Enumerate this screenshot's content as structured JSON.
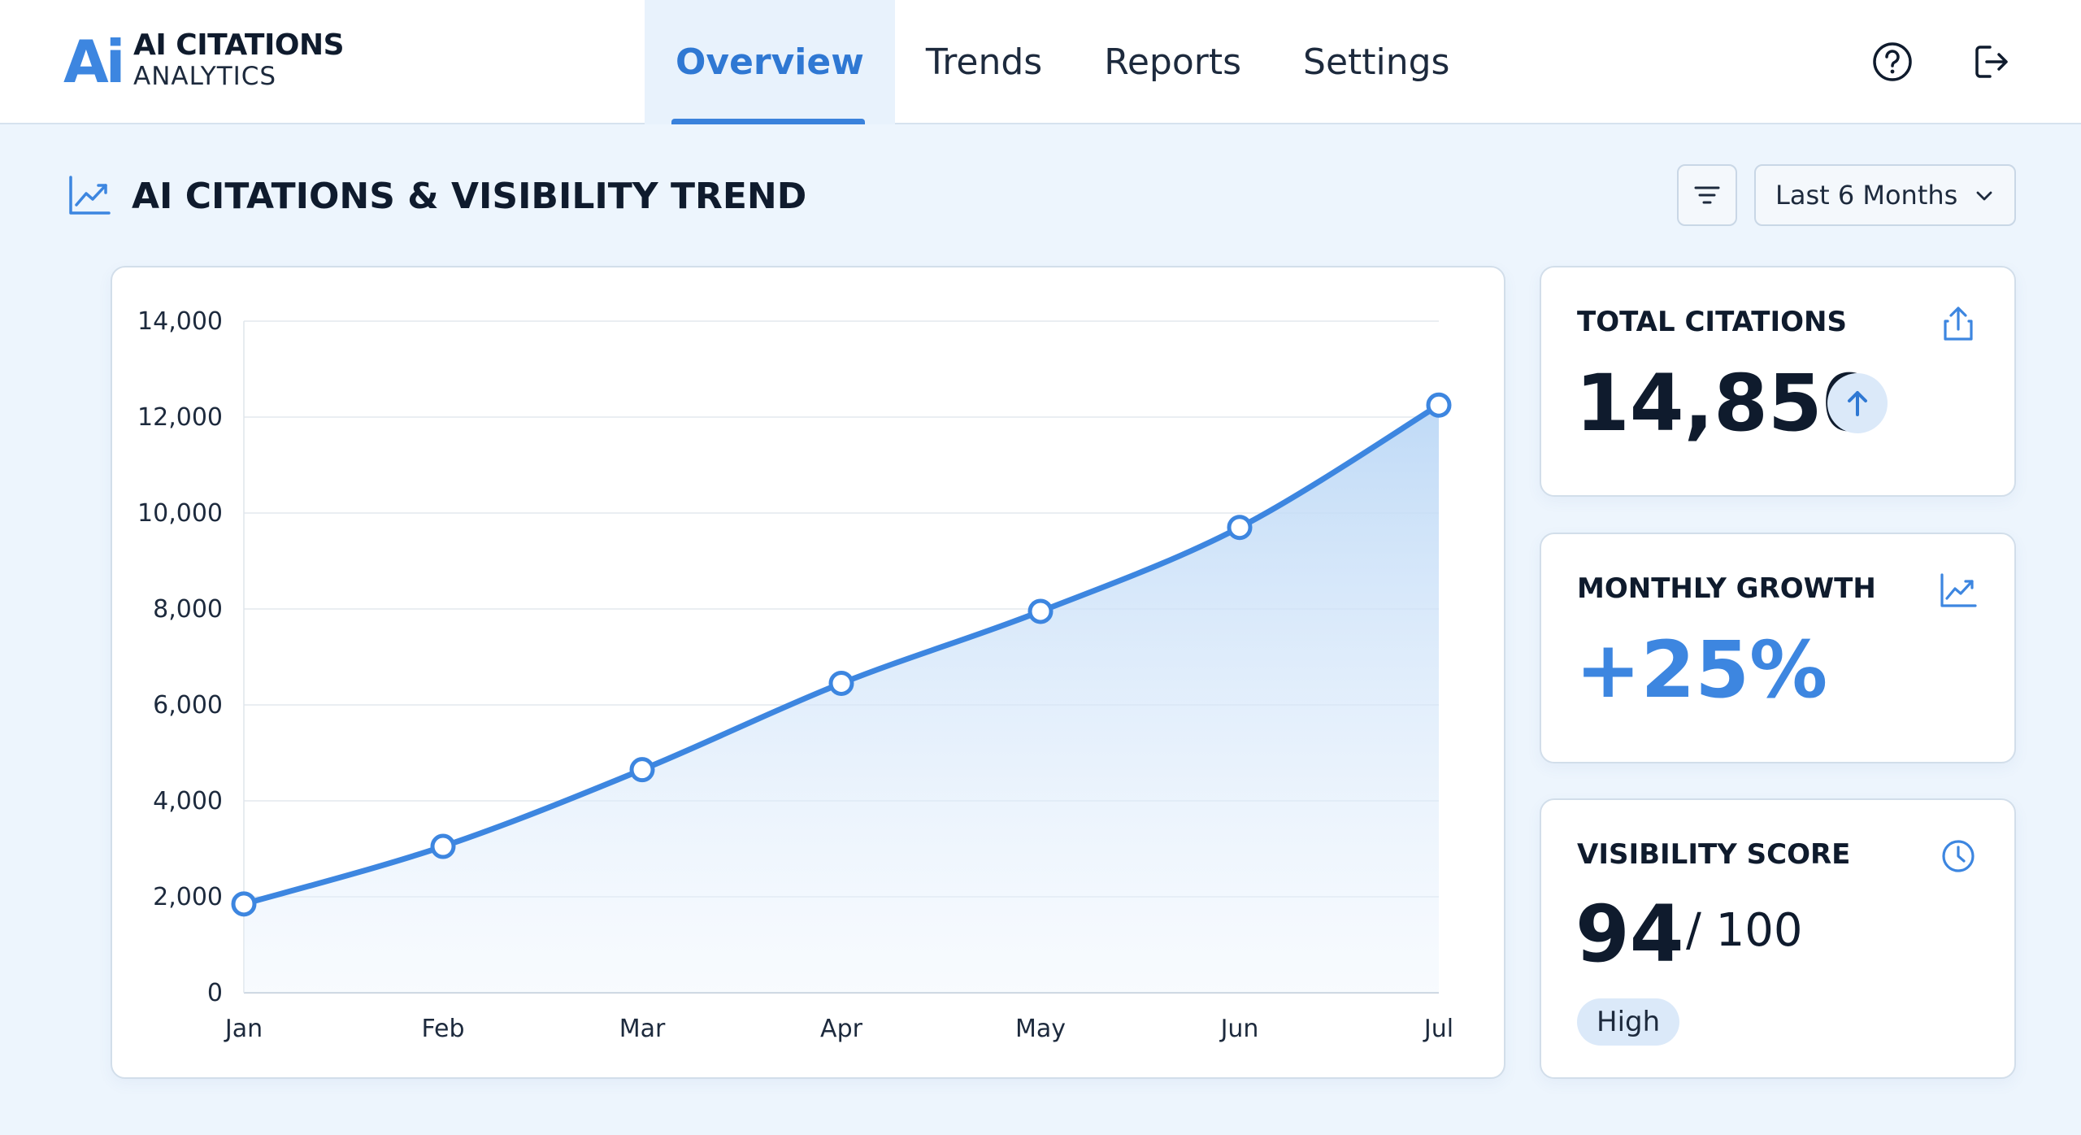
{
  "app": {
    "logo_mark": "Ai",
    "title": "AI CITATIONS",
    "subtitle": "ANALYTICS"
  },
  "nav": {
    "tabs": [
      {
        "label": "Overview",
        "active": true
      },
      {
        "label": "Trends",
        "active": false
      },
      {
        "label": "Reports",
        "active": false
      },
      {
        "label": "Settings",
        "active": false
      }
    ]
  },
  "header_icons": [
    "help-icon",
    "logout-icon"
  ],
  "section": {
    "title": "AI CITATIONS & VISIBILITY TREND",
    "icon": "trend-chart-icon",
    "filter_icon": "filter-icon",
    "range": {
      "selected": "Last 6 Months"
    }
  },
  "chart_data": {
    "type": "area",
    "categories": [
      "Jan",
      "Feb",
      "Mar",
      "Apr",
      "May",
      "Jun",
      "Jul"
    ],
    "values": [
      1850,
      3050,
      4650,
      6450,
      7950,
      9700,
      12250
    ],
    "ylim": [
      0,
      14000
    ],
    "yticks": [
      0,
      2000,
      4000,
      6000,
      8000,
      10000,
      12000,
      14000
    ],
    "ytick_labels": [
      "0",
      "2,000",
      "4,000",
      "6,000",
      "8,000",
      "10,000",
      "12,000",
      "14,000"
    ],
    "grid": true,
    "color": "#3d86e0"
  },
  "metrics": {
    "total_citations": {
      "label": "TOTAL CITATIONS",
      "value": "14,850",
      "icon": "share-icon",
      "trend_icon": "arrow-up-icon"
    },
    "monthly_growth": {
      "label": "MONTHLY GROWTH",
      "value": "+25%",
      "icon": "trend-chart-icon"
    },
    "visibility_score": {
      "label": "VISIBILITY SCORE",
      "value": "94",
      "suffix": "/ 100",
      "badge": "High",
      "icon": "clock-icon"
    }
  },
  "colors": {
    "accent": "#3d86e0",
    "background": "#edf5fd",
    "text": "#0f1b2d"
  }
}
